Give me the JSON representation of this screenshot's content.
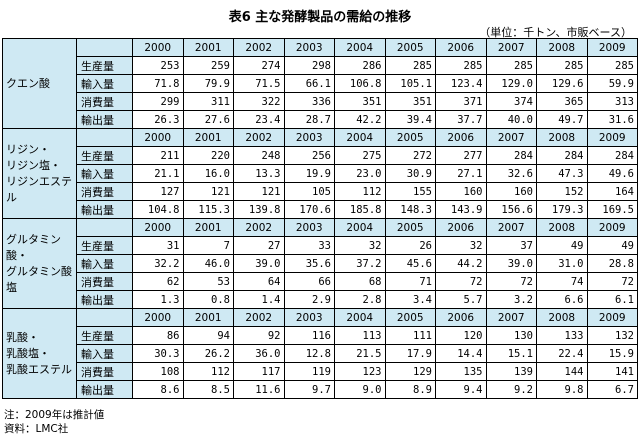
{
  "title": "表6 主な発酵製品の需給の推移",
  "unit": "（単位：千トン、市販ベース）",
  "years": [
    "2000",
    "2001",
    "2002",
    "2003",
    "2004",
    "2005",
    "2006",
    "2007",
    "2008",
    "2009"
  ],
  "metric_labels": [
    "生産量",
    "輸入量",
    "消費量",
    "輸出量"
  ],
  "products": [
    {
      "name": "クエン酸",
      "rows": [
        [
          "253",
          "259",
          "274",
          "298",
          "286",
          "285",
          "285",
          "285",
          "285",
          "285"
        ],
        [
          "71.8",
          "79.9",
          "71.5",
          "66.1",
          "106.8",
          "105.1",
          "123.4",
          "129.0",
          "129.6",
          "59.9"
        ],
        [
          "299",
          "311",
          "322",
          "336",
          "351",
          "351",
          "371",
          "374",
          "365",
          "313"
        ],
        [
          "26.3",
          "27.6",
          "23.4",
          "28.7",
          "42.2",
          "39.4",
          "37.7",
          "40.0",
          "49.7",
          "31.6"
        ]
      ]
    },
    {
      "name": "リジン・\nリジン塩・\nリジンエステル",
      "rows": [
        [
          "211",
          "220",
          "248",
          "256",
          "275",
          "272",
          "277",
          "284",
          "284",
          "284"
        ],
        [
          "21.1",
          "16.0",
          "13.3",
          "19.9",
          "23.0",
          "30.9",
          "27.1",
          "32.6",
          "47.3",
          "49.6"
        ],
        [
          "127",
          "121",
          "121",
          "105",
          "112",
          "155",
          "160",
          "160",
          "152",
          "164"
        ],
        [
          "104.8",
          "115.3",
          "139.8",
          "170.6",
          "185.8",
          "148.3",
          "143.9",
          "156.6",
          "179.3",
          "169.5"
        ]
      ]
    },
    {
      "name": "グルタミン酸・\nグルタミン酸塩",
      "rows": [
        [
          "31",
          "7",
          "27",
          "33",
          "32",
          "26",
          "32",
          "37",
          "49",
          "49"
        ],
        [
          "32.2",
          "46.0",
          "39.0",
          "35.6",
          "37.2",
          "45.6",
          "44.2",
          "39.0",
          "31.0",
          "28.8"
        ],
        [
          "62",
          "53",
          "64",
          "66",
          "68",
          "71",
          "72",
          "72",
          "74",
          "72"
        ],
        [
          "1.3",
          "0.8",
          "1.4",
          "2.9",
          "2.8",
          "3.4",
          "5.7",
          "3.2",
          "6.6",
          "6.1"
        ]
      ]
    },
    {
      "name": "乳酸・\n乳酸塩・\n乳酸エステル",
      "rows": [
        [
          "86",
          "94",
          "92",
          "116",
          "113",
          "111",
          "120",
          "130",
          "133",
          "132"
        ],
        [
          "30.3",
          "26.2",
          "36.0",
          "12.8",
          "21.5",
          "17.9",
          "14.4",
          "15.1",
          "22.4",
          "15.9"
        ],
        [
          "108",
          "112",
          "117",
          "119",
          "123",
          "129",
          "135",
          "139",
          "144",
          "141"
        ],
        [
          "8.6",
          "8.5",
          "11.6",
          "9.7",
          "9.0",
          "8.9",
          "9.4",
          "9.2",
          "9.8",
          "6.7"
        ]
      ]
    }
  ],
  "notes": [
    "注：2009年は推計値",
    "資料：LMC社"
  ]
}
